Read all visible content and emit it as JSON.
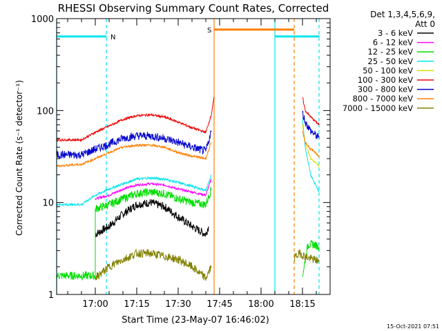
{
  "chart_data": {
    "type": "line",
    "title": "RHESSI Observing Summary Count Rates, Corrected",
    "xlabel": "Start Time (23-May-07 16:46:02)",
    "ylabel": "Corrected Count Rate (s⁻¹ detector⁻¹)",
    "y_scale": "log",
    "ylim": [
      1,
      1000
    ],
    "xlim": [
      "16:46",
      "18:25"
    ],
    "x_ticks": [
      "17:00",
      "17:15",
      "17:30",
      "17:45",
      "18:00",
      "18:15"
    ],
    "y_ticks": [
      "1",
      "10",
      "100",
      "1000"
    ],
    "legend_title": [
      "Det 1,3,4,5,6,9,",
      "Att 0"
    ],
    "legend_position": "right",
    "timestamp": "15-Oct-2021 07:51",
    "grid": false,
    "annotations": [
      {
        "label": "N",
        "color": "#00e5ee",
        "level": 640,
        "spans": [
          [
            "16:46",
            "17:04"
          ],
          [
            "18:05",
            "18:21"
          ]
        ],
        "edges": [
          {
            "t": "16:46",
            "style": "solid"
          },
          {
            "t": "17:04",
            "style": "dashed"
          },
          {
            "t": "18:05",
            "style": "solid"
          },
          {
            "t": "18:21",
            "style": "dashed"
          }
        ]
      },
      {
        "label": "S",
        "color": "#ff7f00",
        "level": 760,
        "spans": [
          [
            "17:43",
            "18:12"
          ]
        ],
        "edges": [
          {
            "t": "17:43",
            "style": "solid"
          },
          {
            "t": "18:12",
            "style": "dashed"
          }
        ]
      }
    ],
    "series": [
      {
        "name": "3 - 6 keV",
        "color": "#000000",
        "segments": [
          {
            "x": [
              "17:00",
              "17:05",
              "17:10",
              "17:15",
              "17:20",
              "17:25",
              "17:30",
              "17:35",
              "17:40",
              "17:41"
            ],
            "y": [
              4.5,
              5.5,
              7.5,
              9.5,
              10,
              9,
              7,
              5.5,
              4.5,
              5.5
            ]
          }
        ]
      },
      {
        "name": "6 - 12 keV",
        "color": "#ff00ff",
        "segments": [
          {
            "x": [
              "17:00",
              "17:05",
              "17:10",
              "17:15",
              "17:20",
              "17:25",
              "17:30",
              "17:35",
              "17:40",
              "17:42"
            ],
            "y": [
              11,
              12,
              14,
              15.5,
              16,
              15.5,
              14,
              13,
              12,
              18
            ]
          }
        ]
      },
      {
        "name": "12 - 25 keV",
        "color": "#00dd00",
        "segments": [
          {
            "x": [
              "16:46",
              "16:55",
              "17:00",
              "17:00",
              "17:05",
              "17:10",
              "17:15",
              "17:20",
              "17:25",
              "17:30",
              "17:35",
              "17:40",
              "17:42"
            ],
            "y": [
              1.6,
              1.6,
              1.6,
              8.5,
              9.5,
              11,
              12.5,
              13,
              12.5,
              11,
              10,
              9.5,
              14
            ]
          },
          {
            "x": [
              "18:15",
              "18:17",
              "18:19",
              "18:21"
            ],
            "y": [
              1.6,
              3.5,
              3.5,
              3.3
            ]
          }
        ]
      },
      {
        "name": "25 - 50 keV",
        "color": "#00e5ee",
        "segments": [
          {
            "x": [
              "16:46",
              "16:55",
              "17:00",
              "17:05",
              "17:10",
              "17:15",
              "17:20",
              "17:25",
              "17:30",
              "17:35",
              "17:40",
              "17:42"
            ],
            "y": [
              9.5,
              9.5,
              12,
              14,
              16,
              18,
              18.5,
              18,
              16.5,
              15,
              13.5,
              20
            ]
          },
          {
            "x": [
              "18:15",
              "18:16",
              "18:18",
              "18:21"
            ],
            "y": [
              80,
              40,
              20,
              13
            ]
          }
        ]
      },
      {
        "name": "50 - 100 keV",
        "color": "#dddd00",
        "segments": [
          {
            "x": [
              "18:15",
              "18:16",
              "18:18",
              "18:21"
            ],
            "y": [
              70,
              45,
              30,
              25
            ]
          }
        ]
      },
      {
        "name": "100 - 300 keV",
        "color": "#ee0000",
        "segments": [
          {
            "x": [
              "16:46",
              "16:55",
              "17:00",
              "17:05",
              "17:10",
              "17:15",
              "17:20",
              "17:25",
              "17:30",
              "17:35",
              "17:40",
              "17:42",
              "17:43"
            ],
            "y": [
              48,
              48,
              58,
              68,
              80,
              88,
              90,
              85,
              75,
              65,
              58,
              90,
              140
            ]
          },
          {
            "x": [
              "18:15",
              "18:16",
              "18:18",
              "18:21"
            ],
            "y": [
              140,
              100,
              85,
              70
            ]
          }
        ]
      },
      {
        "name": "300 - 800 keV",
        "color": "#0000cc",
        "segments": [
          {
            "x": [
              "16:46",
              "16:55",
              "17:00",
              "17:05",
              "17:10",
              "17:15",
              "17:20",
              "17:25",
              "17:30",
              "17:35",
              "17:40",
              "17:42"
            ],
            "y": [
              33,
              33,
              38,
              43,
              50,
              53,
              53,
              50,
              45,
              40,
              36,
              60
            ]
          },
          {
            "x": [
              "18:15",
              "18:16",
              "18:18",
              "18:21"
            ],
            "y": [
              95,
              75,
              60,
              50
            ]
          }
        ]
      },
      {
        "name": "800 - 7000 keV",
        "color": "#ff7f00",
        "segments": [
          {
            "x": [
              "16:46",
              "16:55",
              "17:00",
              "17:05",
              "17:10",
              "17:15",
              "17:20",
              "17:25",
              "17:30",
              "17:35",
              "17:40",
              "17:42"
            ],
            "y": [
              25,
              26,
              30,
              35,
              40,
              42,
              42,
              40,
              35,
              32,
              30,
              45
            ]
          },
          {
            "x": [
              "18:15",
              "18:16",
              "18:18",
              "18:21"
            ],
            "y": [
              60,
              45,
              38,
              32
            ]
          }
        ]
      },
      {
        "name": "7000 - 15000 keV",
        "color": "#808000",
        "segments": [
          {
            "x": [
              "17:00",
              "17:05",
              "17:10",
              "17:15",
              "17:20",
              "17:25",
              "17:30",
              "17:35",
              "17:40",
              "17:42"
            ],
            "y": [
              1.5,
              2,
              2.4,
              2.8,
              2.8,
              2.6,
              2.4,
              2,
              1.5,
              2
            ]
          },
          {
            "x": [
              "18:12",
              "18:14",
              "18:17",
              "18:21"
            ],
            "y": [
              2.5,
              2.8,
              2.5,
              2.3
            ]
          }
        ]
      }
    ]
  }
}
